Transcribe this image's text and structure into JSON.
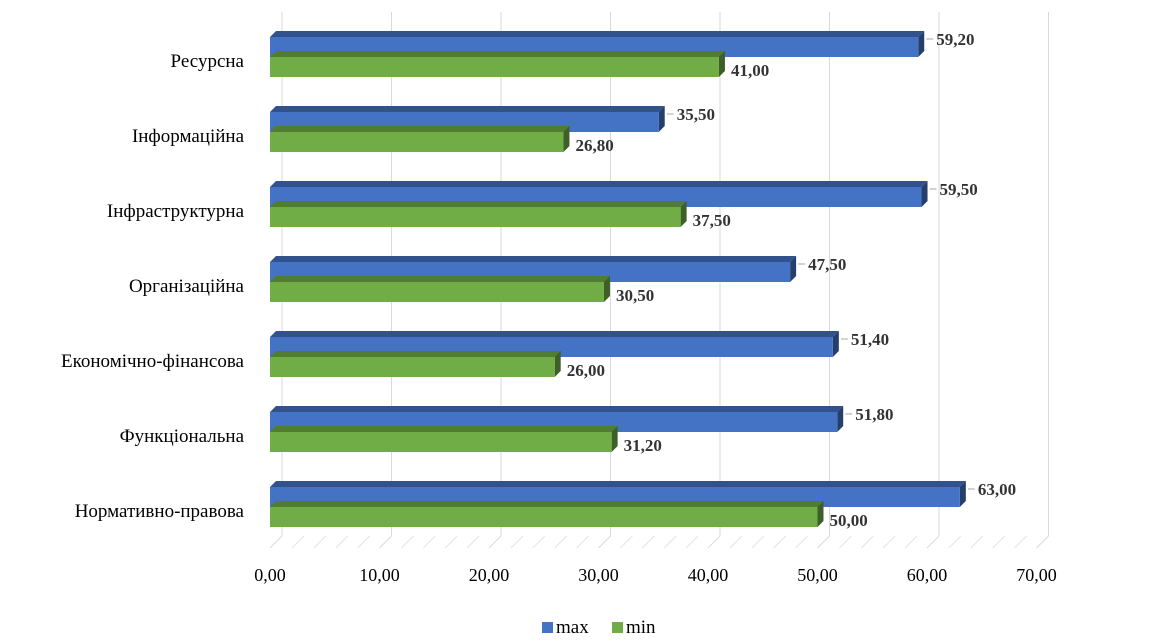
{
  "chart_data": {
    "type": "bar",
    "orientation": "horizontal",
    "style": "3d",
    "categories": [
      "Ресурсна",
      "Інформаційна",
      "Інфраструктурна",
      "Організаційна",
      "Економічно-фінансова",
      "Функціональна",
      "Нормативно-правова"
    ],
    "series": [
      {
        "name": "max",
        "color": "#4472c4",
        "values": [
          59.2,
          35.5,
          59.5,
          47.5,
          51.4,
          51.8,
          63.0
        ],
        "labels": [
          "59,20",
          "35,50",
          "59,50",
          "47,50",
          "51,40",
          "51,80",
          "63,00"
        ]
      },
      {
        "name": "min",
        "color": "#70ad47",
        "values": [
          41.0,
          26.8,
          37.5,
          30.5,
          26.0,
          31.2,
          50.0
        ],
        "labels": [
          "41,00",
          "26,80",
          "37,50",
          "30,50",
          "26,00",
          "31,20",
          "50,00"
        ]
      }
    ],
    "xlim": [
      0,
      70
    ],
    "xticks": [
      0,
      10,
      20,
      30,
      40,
      50,
      60,
      70
    ],
    "xtick_labels": [
      "0,00",
      "10,00",
      "20,00",
      "30,00",
      "40,00",
      "50,00",
      "60,00",
      "70,00"
    ],
    "grid": true,
    "legend_position": "bottom"
  }
}
